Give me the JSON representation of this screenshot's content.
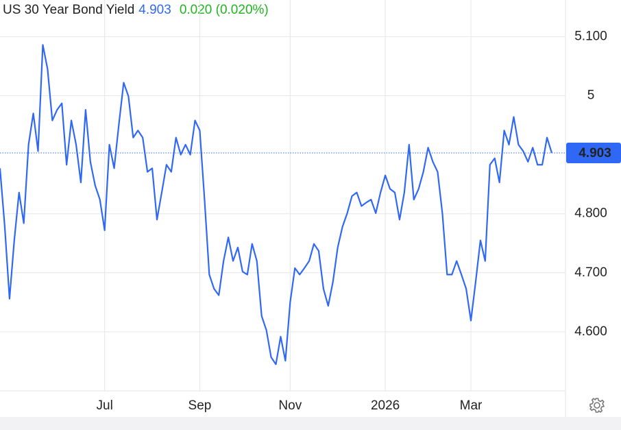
{
  "chart_data": {
    "type": "line",
    "title": "US 30 Year Bond Yield",
    "price": {
      "value": 4.903,
      "label": "4.903",
      "color": "#2f68f5"
    },
    "change": {
      "label": "0.020 (0.020%)",
      "color": "#1fb51f"
    },
    "categories": [
      null,
      null,
      null,
      null,
      null,
      null,
      null,
      null,
      null,
      null,
      null,
      null,
      null,
      null,
      null,
      null,
      null,
      null,
      null,
      null,
      null,
      null,
      "Jul",
      null,
      null,
      null,
      null,
      null,
      null,
      null,
      null,
      null,
      null,
      null,
      null,
      null,
      null,
      null,
      null,
      null,
      null,
      null,
      "Sep",
      null,
      null,
      null,
      null,
      null,
      null,
      null,
      null,
      null,
      null,
      null,
      null,
      null,
      null,
      null,
      null,
      null,
      null,
      "Nov",
      null,
      null,
      null,
      null,
      null,
      null,
      null,
      null,
      null,
      null,
      null,
      null,
      null,
      null,
      null,
      null,
      null,
      null,
      null,
      "2026",
      null,
      null,
      null,
      null,
      null,
      null,
      null,
      null,
      null,
      null,
      null,
      null,
      null,
      null,
      null,
      null,
      null,
      "Mar",
      null,
      null,
      null,
      null,
      null,
      null,
      null,
      null,
      null,
      null,
      null,
      null,
      null,
      null,
      null,
      null,
      null
    ],
    "series": [
      {
        "name": "US 30 Year Bond Yield",
        "color": "#2f68f5",
        "values": [
          4.877,
          4.778,
          4.656,
          4.755,
          4.836,
          4.784,
          4.917,
          4.97,
          4.906,
          5.086,
          5.045,
          4.958,
          4.976,
          4.987,
          4.883,
          4.958,
          4.917,
          4.853,
          4.976,
          4.888,
          4.848,
          4.824,
          4.772,
          4.917,
          4.877,
          4.952,
          5.022,
          4.999,
          4.929,
          4.941,
          4.929,
          4.871,
          4.877,
          4.79,
          4.836,
          4.883,
          4.871,
          4.929,
          4.9,
          4.917,
          4.9,
          4.958,
          4.941,
          4.824,
          4.697,
          4.673,
          4.662,
          4.72,
          4.76,
          4.72,
          4.743,
          4.702,
          4.697,
          4.749,
          4.72,
          4.627,
          4.603,
          4.557,
          4.545,
          4.592,
          4.551,
          4.65,
          4.708,
          4.697,
          4.708,
          4.72,
          4.749,
          4.737,
          4.673,
          4.644,
          4.685,
          4.743,
          4.778,
          4.801,
          4.83,
          4.836,
          4.813,
          4.819,
          4.824,
          4.801,
          4.836,
          4.865,
          4.842,
          4.836,
          4.79,
          4.836,
          4.917,
          4.824,
          4.842,
          4.871,
          4.912,
          4.888,
          4.871,
          4.801,
          4.697,
          4.697,
          4.72,
          4.697,
          4.673,
          4.619,
          4.685,
          4.755,
          4.72,
          4.883,
          4.894,
          4.853,
          4.941,
          4.917,
          4.964,
          4.917,
          4.906,
          4.888,
          4.912,
          4.883,
          4.883,
          4.929,
          4.903
        ]
      }
    ],
    "ylim": [
      4.5,
      5.162
    ],
    "yticks": [
      {
        "value": 5.1,
        "label": "5.100"
      },
      5,
      {
        "value": 4.8,
        "label": "4.800"
      },
      {
        "value": 4.7,
        "label": "4.700"
      },
      {
        "value": 4.6,
        "label": "4.600"
      }
    ],
    "grid": true
  }
}
